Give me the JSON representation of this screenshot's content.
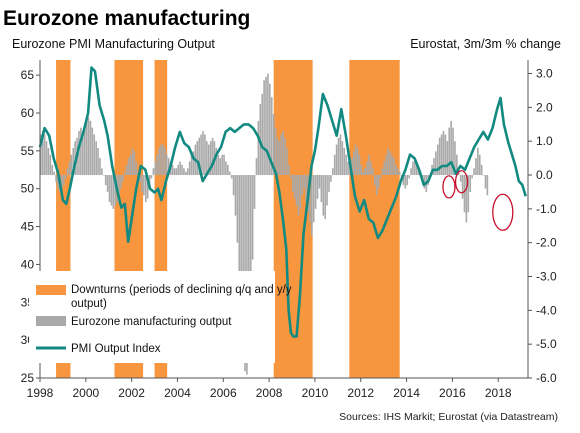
{
  "chart_data": {
    "type": "bar",
    "title": "Eurozone manufacturing",
    "left_axis_label": "Eurozone PMI Manufacturing Output",
    "right_axis_label": "Eurostat, 3m/3m % change",
    "source": "Sources: IHS Markit; Eurostat (via Datastream)",
    "x_range": [
      1998,
      2019.3
    ],
    "x_ticks": [
      "1998",
      "2000",
      "2002",
      "2004",
      "2006",
      "2008",
      "2010",
      "2012",
      "2014",
      "2016",
      "2018"
    ],
    "left_ylim": [
      25,
      67
    ],
    "left_ticks": [
      "65",
      "60",
      "55",
      "50",
      "45",
      "40",
      "35",
      "30",
      "25"
    ],
    "right_ylim": [
      -6.0,
      3.4
    ],
    "right_ticks": [
      "3.0",
      "2.0",
      "1.0",
      "0.0",
      "-1.0",
      "-2.0",
      "-3.0",
      "-4.0",
      "-5.0",
      "-6.0"
    ],
    "downturns": [
      [
        1998.7,
        1999.33
      ],
      [
        2001.25,
        2002.5
      ],
      [
        2003.0,
        2003.55
      ],
      [
        2008.2,
        2009.9
      ],
      [
        2011.5,
        2013.7
      ]
    ],
    "series": [
      {
        "name": "PMI Output Index",
        "color": "#128a82",
        "axis": "left",
        "points": [
          [
            1998.0,
            55.5
          ],
          [
            1998.2,
            58
          ],
          [
            1998.4,
            57
          ],
          [
            1998.6,
            54
          ],
          [
            1998.8,
            52
          ],
          [
            1999.0,
            48.5
          ],
          [
            1999.15,
            48
          ],
          [
            1999.3,
            50
          ],
          [
            1999.5,
            53
          ],
          [
            1999.7,
            55.5
          ],
          [
            1999.9,
            57.5
          ],
          [
            2000.1,
            60
          ],
          [
            2000.25,
            66
          ],
          [
            2000.4,
            65.5
          ],
          [
            2000.6,
            61
          ],
          [
            2000.8,
            59
          ],
          [
            2000.95,
            57
          ],
          [
            2001.15,
            53
          ],
          [
            2001.35,
            50
          ],
          [
            2001.55,
            47.5
          ],
          [
            2001.7,
            48
          ],
          [
            2001.85,
            43
          ],
          [
            2002.0,
            46
          ],
          [
            2002.2,
            50
          ],
          [
            2002.4,
            53
          ],
          [
            2002.6,
            52.5
          ],
          [
            2002.8,
            50
          ],
          [
            2003.0,
            49.5
          ],
          [
            2003.15,
            50
          ],
          [
            2003.3,
            48.5
          ],
          [
            2003.5,
            51
          ],
          [
            2003.7,
            53
          ],
          [
            2003.9,
            55.5
          ],
          [
            2004.1,
            57.5
          ],
          [
            2004.3,
            56
          ],
          [
            2004.5,
            55.5
          ],
          [
            2004.7,
            54
          ],
          [
            2004.9,
            53.5
          ],
          [
            2005.1,
            51
          ],
          [
            2005.3,
            52
          ],
          [
            2005.5,
            53
          ],
          [
            2005.7,
            54.5
          ],
          [
            2005.9,
            55.5
          ],
          [
            2006.1,
            57.5
          ],
          [
            2006.3,
            58
          ],
          [
            2006.5,
            57.5
          ],
          [
            2006.7,
            58
          ],
          [
            2006.9,
            58.5
          ],
          [
            2007.1,
            58.5
          ],
          [
            2007.3,
            58
          ],
          [
            2007.5,
            57
          ],
          [
            2007.7,
            55.5
          ],
          [
            2007.9,
            55
          ],
          [
            2008.1,
            53.5
          ],
          [
            2008.3,
            52
          ],
          [
            2008.45,
            49.5
          ],
          [
            2008.6,
            46
          ],
          [
            2008.75,
            42
          ],
          [
            2008.85,
            34
          ],
          [
            2008.95,
            31
          ],
          [
            2009.05,
            30.5
          ],
          [
            2009.2,
            30.5
          ],
          [
            2009.35,
            36
          ],
          [
            2009.5,
            44
          ],
          [
            2009.7,
            49
          ],
          [
            2009.85,
            53
          ],
          [
            2010.0,
            55
          ],
          [
            2010.15,
            58
          ],
          [
            2010.35,
            62.5
          ],
          [
            2010.55,
            61
          ],
          [
            2010.75,
            59
          ],
          [
            2010.95,
            57
          ],
          [
            2011.15,
            60.5
          ],
          [
            2011.35,
            57
          ],
          [
            2011.55,
            53
          ],
          [
            2011.75,
            49
          ],
          [
            2011.95,
            47
          ],
          [
            2012.15,
            48.5
          ],
          [
            2012.35,
            46
          ],
          [
            2012.55,
            45.5
          ],
          [
            2012.75,
            43.5
          ],
          [
            2012.95,
            44.5
          ],
          [
            2013.15,
            46
          ],
          [
            2013.35,
            47.5
          ],
          [
            2013.55,
            49
          ],
          [
            2013.75,
            51
          ],
          [
            2013.95,
            52.5
          ],
          [
            2014.15,
            54.5
          ],
          [
            2014.35,
            54
          ],
          [
            2014.55,
            52.5
          ],
          [
            2014.75,
            50.5
          ],
          [
            2014.95,
            51
          ],
          [
            2015.15,
            52.5
          ],
          [
            2015.35,
            52.5
          ],
          [
            2015.55,
            53
          ],
          [
            2015.75,
            53
          ],
          [
            2015.95,
            53.5
          ],
          [
            2016.15,
            52
          ],
          [
            2016.35,
            53
          ],
          [
            2016.55,
            52.5
          ],
          [
            2016.75,
            54
          ],
          [
            2016.95,
            55.5
          ],
          [
            2017.15,
            56.5
          ],
          [
            2017.35,
            57.5
          ],
          [
            2017.55,
            56.5
          ],
          [
            2017.75,
            58
          ],
          [
            2017.95,
            60.5
          ],
          [
            2018.1,
            62
          ],
          [
            2018.25,
            58.5
          ],
          [
            2018.45,
            56
          ],
          [
            2018.6,
            54.5
          ],
          [
            2018.75,
            53
          ],
          [
            2018.9,
            51
          ],
          [
            2019.05,
            50.5
          ],
          [
            2019.2,
            49
          ]
        ]
      },
      {
        "name": "Eurozone manufacturing output",
        "color": "#a9a9a9",
        "axis": "right",
        "bar_width_years": 0.0833,
        "monthly_start": 1998.0,
        "monthly_values": [
          1.2,
          1.3,
          1.2,
          1.0,
          0.8,
          0.6,
          0.3,
          0.1,
          -0.2,
          -0.4,
          -0.5,
          -0.4,
          -0.3,
          -0.1,
          0.2,
          0.4,
          0.6,
          0.8,
          1.0,
          1.1,
          1.3,
          1.4,
          1.3,
          1.5,
          1.6,
          1.7,
          1.6,
          1.4,
          1.2,
          1.0,
          0.8,
          0.5,
          0.2,
          0.0,
          -0.3,
          -0.5,
          -0.8,
          -0.9,
          -1.0,
          -0.9,
          -0.8,
          -0.6,
          -0.4,
          -0.2,
          0.1,
          0.3,
          0.5,
          0.6,
          0.8,
          0.7,
          0.4,
          0.1,
          -0.2,
          -0.5,
          -0.6,
          -0.8,
          -0.7,
          -0.4,
          -0.1,
          0.2,
          0.4,
          0.6,
          0.8,
          0.9,
          0.9,
          0.8,
          0.6,
          0.5,
          0.4,
          0.3,
          0.2,
          0.2,
          0.3,
          0.4,
          0.3,
          0.2,
          0.1,
          0.2,
          0.4,
          0.6,
          0.7,
          0.9,
          1.0,
          1.1,
          1.2,
          1.3,
          1.2,
          1.0,
          0.9,
          1.0,
          1.1,
          1.0,
          0.8,
          0.6,
          0.5,
          0.6,
          0.6,
          0.4,
          0.3,
          0.1,
          -0.1,
          -0.6,
          -1.2,
          -2.0,
          -3.0,
          -4.0,
          -5.3,
          -5.8,
          -5.9,
          -5.5,
          -4.2,
          -2.5,
          -1.0,
          0.5,
          1.6,
          2.1,
          2.4,
          2.8,
          2.9,
          3.0,
          2.7,
          2.3,
          1.8,
          1.4,
          1.1,
          1.0,
          1.2,
          1.3,
          1.1,
          0.8,
          0.3,
          -0.1,
          -0.5,
          -0.7,
          -0.9,
          -1.2,
          -1.0,
          -0.6,
          -0.4,
          -0.8,
          -1.1,
          -1.4,
          -1.8,
          -1.4,
          -1.0,
          -0.7,
          -0.4,
          -0.8,
          -1.2,
          -1.3,
          -0.9,
          -0.5,
          -0.2,
          0.2,
          0.6,
          0.9,
          1.1,
          1.2,
          1.0,
          0.8,
          0.6,
          0.4,
          0.3,
          0.5,
          0.7,
          0.9,
          0.8,
          0.6,
          0.3,
          0.1,
          0.2,
          0.4,
          0.6,
          0.4,
          0.2,
          -0.3,
          -0.6,
          -0.4,
          -0.1,
          0.2,
          0.4,
          0.6,
          0.8,
          0.7,
          0.6,
          0.5,
          0.3,
          0.2,
          0.1,
          -0.1,
          -0.3,
          -0.4,
          -0.3,
          -0.1,
          0.2,
          0.4,
          0.5,
          0.4,
          0.2,
          0.0,
          -0.2,
          -0.4,
          -0.5,
          -0.3,
          0.0,
          0.3,
          0.5,
          0.7,
          0.9,
          1.1,
          1.2,
          1.3,
          1.2,
          1.0,
          1.4,
          1.6,
          1.4,
          1.0,
          0.6,
          0.2,
          -0.2,
          -0.7,
          -1.1,
          -1.4,
          -1.1,
          -0.5,
          -0.1,
          0.2,
          0.5,
          0.8,
          0.6,
          0.3,
          0.0,
          -0.4,
          -0.6
        ]
      }
    ],
    "highlight_ellipses": [
      {
        "x": 2015.85,
        "y_right": -0.35
      },
      {
        "x": 2016.4,
        "y_right": -0.2
      },
      {
        "x": 2018.2,
        "y_right": -1.1
      }
    ],
    "legend": [
      {
        "label_line1": "Downturns (periods of declining q/q and y/y",
        "label_line2": "output)",
        "color": "#f7963f"
      },
      {
        "label_line1": "Eurozone manufacturing output",
        "label_line2": "",
        "color": "#a9a9a9"
      },
      {
        "label_line1": "PMI Output Index",
        "label_line2": "",
        "color": "#128a82"
      }
    ],
    "colors": {
      "downturn": "#f7963f",
      "bars": "#a9a9a9",
      "line": "#128a82",
      "ellipse": "#c8102e"
    }
  }
}
